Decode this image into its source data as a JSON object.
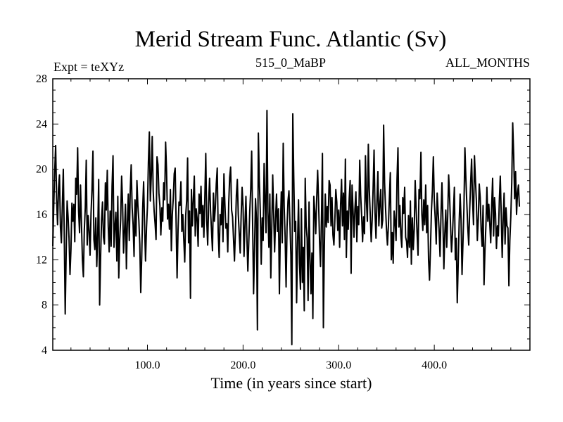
{
  "chart_data": {
    "type": "line",
    "title": "Merid Stream Func. Atlantic (Sv)",
    "subtitle_left": "Expt = teXYz",
    "subtitle_center": "515_0_MaBP",
    "subtitle_right": "ALL_MONTHS",
    "xlabel": "Time (in years since start)",
    "ylabel": "",
    "xlim": [
      1,
      500
    ],
    "ylim": [
      4,
      28
    ],
    "xticks": [
      100,
      200,
      300,
      400
    ],
    "xtick_labels": [
      "100.0",
      "200.0",
      "300.0",
      "400.0"
    ],
    "yticks": [
      4,
      8,
      12,
      16,
      20,
      24,
      28
    ],
    "ytick_labels": [
      "4",
      "8",
      "12",
      "16",
      "20",
      "24",
      "28"
    ],
    "grid": false,
    "series": [
      {
        "x_start": 1,
        "x_step": 1,
        "values": [
          13.2,
          16.7,
          19.8,
          22.1,
          17.4,
          15.1,
          18.3,
          19.5,
          14.9,
          13.5,
          16.8,
          20.0,
          14.2,
          7.2,
          12.6,
          17.2,
          15.8,
          13.9,
          10.7,
          12.9,
          17.0,
          15.4,
          16.9,
          13.6,
          19.2,
          17.8,
          21.9,
          16.3,
          14.4,
          18.6,
          15.2,
          12.0,
          10.5,
          14.7,
          16.6,
          20.8,
          13.3,
          15.9,
          14.6,
          12.4,
          16.1,
          18.2,
          21.6,
          13.8,
          12.9,
          15.7,
          11.4,
          14.3,
          19.1,
          8.0,
          12.2,
          15.5,
          17.1,
          14.0,
          13.4,
          18.8,
          16.4,
          19.9,
          15.0,
          12.7,
          16.3,
          13.2,
          18.5,
          21.2,
          13.1,
          14.9,
          16.2,
          11.9,
          17.6,
          10.4,
          13.8,
          15.6,
          19.4,
          17.0,
          12.6,
          14.5,
          16.9,
          11.2,
          15.3,
          17.8,
          13.7,
          18.1,
          20.4,
          16.6,
          15.1,
          12.3,
          17.3,
          14.1,
          19.0,
          16.8,
          15.5,
          13.4,
          9.1,
          12.2,
          16.5,
          18.9,
          15.0,
          11.9,
          14.8,
          16.7,
          20.6,
          23.3,
          17.2,
          19.4,
          22.9,
          18.1,
          16.3,
          15.2,
          13.8,
          21.1,
          20.4,
          17.9,
          16.8,
          14.2,
          16.6,
          15.4,
          18.8,
          17.3,
          22.4,
          19.8,
          15.6,
          16.9,
          14.7,
          18.2,
          12.8,
          16.0,
          17.4,
          19.6,
          20.1,
          15.2,
          10.4,
          14.6,
          17.1,
          16.8,
          18.9,
          14.5,
          16.0,
          13.8,
          11.8,
          15.9,
          17.2,
          21.0,
          13.5,
          16.3,
          8.6,
          18.2,
          15.0,
          17.3,
          19.4,
          14.1,
          16.5,
          15.6,
          13.2,
          17.8,
          16.1,
          18.5,
          14.9,
          16.8,
          14.0,
          17.4,
          21.4,
          15.5,
          13.3,
          17.0,
          19.2,
          16.3,
          14.6,
          12.8,
          17.9,
          15.4,
          16.6,
          18.7,
          20.1,
          14.4,
          12.2,
          16.0,
          15.1,
          17.5,
          13.6,
          19.6,
          16.9,
          14.8,
          15.2,
          12.7,
          17.0,
          19.3,
          20.2,
          16.4,
          15.8,
          13.9,
          11.9,
          14.5,
          17.7,
          19.1,
          16.0,
          14.3,
          12.6,
          15.9,
          18.4,
          16.7,
          12.3,
          15.1,
          17.6,
          14.0,
          11.0,
          13.6,
          16.3,
          18.2,
          21.6,
          15.2,
          9.0,
          13.0,
          17.4,
          15.6,
          5.8,
          23.2,
          19.0,
          16.4,
          11.6,
          15.7,
          13.7,
          20.5,
          17.1,
          14.4,
          25.2,
          16.2,
          13.1,
          17.8,
          10.4,
          14.8,
          19.5,
          16.1,
          12.7,
          15.6,
          17.8,
          14.5,
          16.5,
          9.0,
          14.7,
          18.0,
          13.5,
          22.3,
          16.7,
          14.0,
          9.6,
          14.9,
          17.2,
          18.1,
          15.3,
          12.4,
          4.5,
          24.9,
          19.4,
          14.5,
          15.4,
          8.2,
          13.5,
          17.3,
          11.7,
          9.4,
          16.5,
          10.0,
          13.1,
          7.5,
          19.2,
          15.0,
          13.9,
          8.4,
          17.1,
          12.1,
          9.0,
          12.6,
          6.8,
          17.6,
          16.3,
          14.3,
          17.4,
          19.9,
          17.1,
          13.6,
          11.4,
          15.6,
          21.4,
          6.0,
          13.2,
          17.8,
          14.9,
          16.7,
          15.3,
          19.0,
          18.6,
          15.0,
          17.5,
          14.2,
          13.3,
          15.5,
          18.2,
          17.1,
          14.6,
          16.4,
          13.1,
          16.9,
          19.1,
          15.0,
          17.9,
          13.8,
          20.9,
          12.2,
          16.3,
          14.7,
          17.4,
          19.0,
          10.8,
          18.6,
          16.4,
          14.0,
          16.5,
          18.0,
          13.6,
          16.7,
          15.1,
          20.8,
          17.7,
          15.9,
          13.6,
          15.8,
          14.3,
          21.2,
          17.2,
          15.4,
          22.2,
          18.2,
          16.0,
          13.6,
          15.5,
          18.3,
          21.7,
          16.2,
          13.9,
          17.1,
          19.8,
          15.0,
          16.8,
          18.2,
          14.8,
          15.5,
          23.9,
          18.8,
          16.6,
          14.7,
          13.3,
          15.0,
          17.4,
          19.7,
          12.0,
          14.4,
          11.7,
          16.3,
          15.4,
          13.7,
          19.1,
          21.9,
          14.9,
          16.8,
          14.2,
          13.1,
          17.5,
          16.1,
          18.4,
          14.0,
          13.6,
          12.2,
          15.9,
          13.1,
          17.2,
          11.6,
          15.7,
          12.9,
          14.7,
          19.0,
          16.5,
          14.3,
          12.4,
          18.2,
          17.4,
          21.5,
          16.0,
          14.6,
          17.3,
          15.1,
          18.6,
          14.4,
          16.8,
          12.0,
          10.2,
          13.0,
          16.3,
          18.1,
          21.1,
          17.2,
          15.6,
          13.4,
          17.9,
          16.2,
          14.7,
          12.3,
          16.0,
          18.8,
          15.5,
          11.2,
          14.3,
          16.4,
          13.1,
          15.8,
          19.5,
          17.6,
          15.0,
          12.7,
          14.2,
          16.3,
          18.4,
          12.0,
          13.9,
          8.2,
          11.7,
          15.3,
          17.8,
          15.5,
          10.7,
          13.6,
          16.6,
          21.9,
          19.2,
          17.0,
          14.9,
          13.3,
          16.4,
          18.8,
          20.9,
          17.3,
          15.1,
          21.2,
          19.1,
          17.2,
          13.7,
          15.6,
          18.7,
          17.5,
          14.6,
          13.2,
          16.8,
          9.8,
          12.9,
          15.1,
          18.4,
          15.4,
          16.9,
          15.2,
          13.5,
          16.8,
          19.2,
          14.1,
          17.5,
          16.1,
          13.0,
          15.0,
          14.1,
          17.2,
          19.4,
          16.0,
          12.2,
          15.5,
          17.9,
          13.4,
          16.6,
          15.0,
          14.8,
          9.7,
          13.7,
          15.8,
          18.8,
          24.1,
          21.3,
          17.4,
          19.8,
          16.0,
          17.9,
          18.6,
          16.7
        ]
      }
    ]
  }
}
